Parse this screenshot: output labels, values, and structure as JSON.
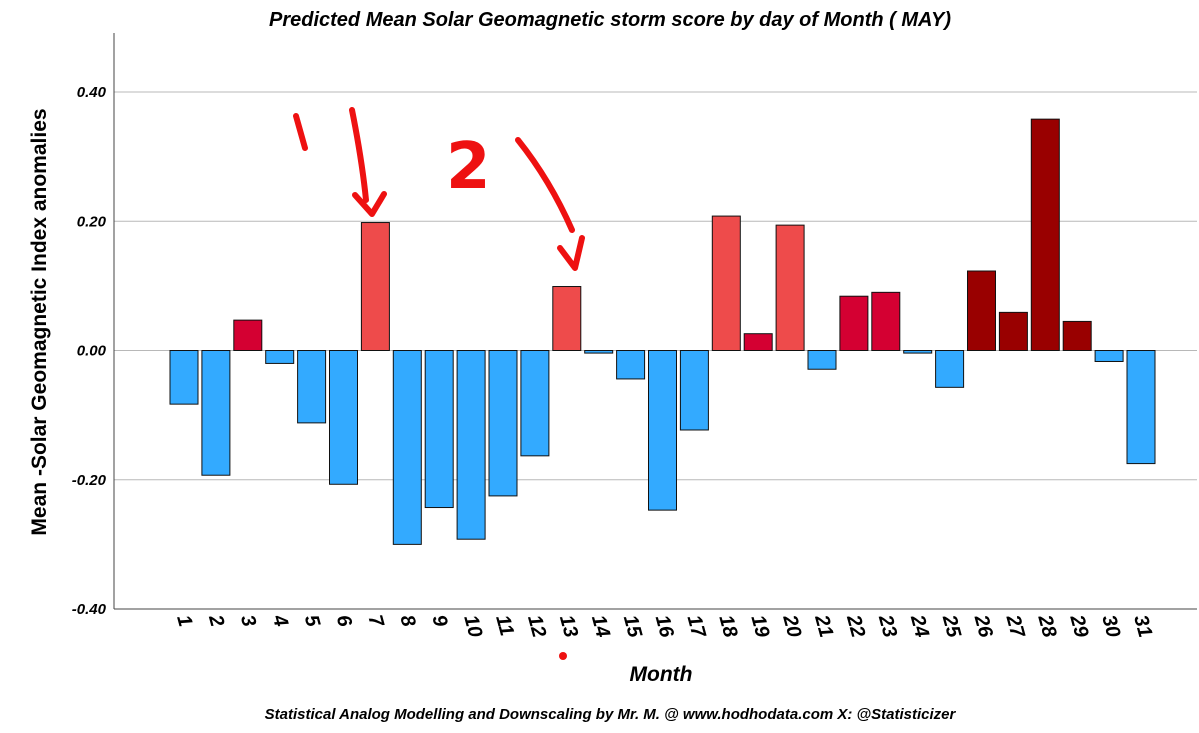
{
  "colors": {
    "negative": "#33aaff",
    "light_red": "#ee4b4b",
    "red": "#d40032",
    "dark_red": "#990000",
    "annotation": "#ee1111"
  },
  "chart_data": {
    "type": "bar",
    "title": "Predicted Mean Solar Geomagnetic storm score by day of Month ( MAY)",
    "xlabel": "Month",
    "ylabel": "Mean -Solar Geomagnetic Index anomalies",
    "ylim": [
      -0.4,
      0.4
    ],
    "yticks": [
      "0.40",
      "0.20",
      "0.00",
      "-0.20",
      "-0.40"
    ],
    "grid": "horizontal",
    "categories": [
      "1",
      "2",
      "3",
      "4",
      "5",
      "6",
      "7",
      "8",
      "9",
      "10",
      "11",
      "12",
      "13",
      "14",
      "15",
      "16",
      "17",
      "18",
      "19",
      "20",
      "21",
      "22",
      "23",
      "24",
      "25",
      "26",
      "27",
      "28",
      "29",
      "30",
      "31"
    ],
    "values": [
      -0.083,
      -0.193,
      0.047,
      -0.02,
      -0.112,
      -0.207,
      0.198,
      -0.3,
      -0.243,
      -0.292,
      -0.225,
      -0.163,
      0.099,
      -0.004,
      -0.044,
      -0.247,
      -0.123,
      0.208,
      0.026,
      0.194,
      -0.029,
      0.084,
      0.09,
      -0.004,
      -0.057,
      0.123,
      0.059,
      0.358,
      0.045,
      -0.017,
      -0.175
    ],
    "color_classes": [
      "negative",
      "negative",
      "red",
      "negative",
      "negative",
      "negative",
      "light_red",
      "negative",
      "negative",
      "negative",
      "negative",
      "negative",
      "light_red",
      "negative",
      "negative",
      "negative",
      "negative",
      "light_red",
      "red",
      "light_red",
      "negative",
      "red",
      "red",
      "negative",
      "negative",
      "dark_red",
      "dark_red",
      "dark_red",
      "dark_red",
      "negative",
      "negative"
    ],
    "annotations": [
      "1",
      "2"
    ]
  },
  "footer": {
    "credit": "Statistical Analog Modelling and Downscaling by Mr. M. @ www.hodhodata.com X: @Statisticizer"
  }
}
